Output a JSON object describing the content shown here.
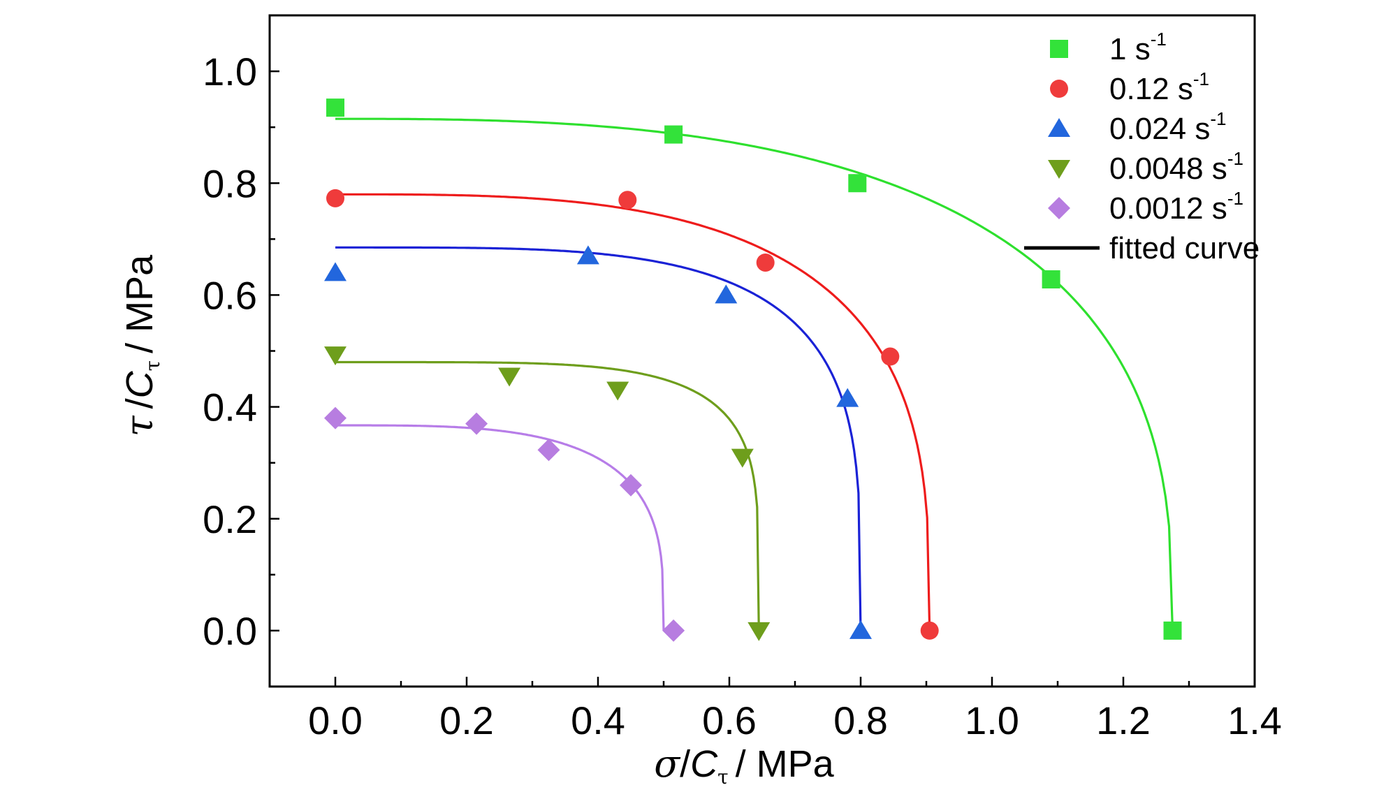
{
  "chart_data": {
    "type": "scatter",
    "title": "",
    "xlabel": {
      "symbol": "σ",
      "divisor": "C",
      "divisor_sub": "τ",
      "unit": "/ MPa"
    },
    "ylabel": {
      "symbol": "τ",
      "divisor": "C",
      "divisor_sub": "τ",
      "unit": "/ MPa"
    },
    "xlim": [
      -0.1,
      1.4
    ],
    "ylim": [
      -0.1,
      1.1
    ],
    "x_ticks": [
      "0.0",
      "0.2",
      "0.4",
      "0.6",
      "0.8",
      "1.0",
      "1.2",
      "1.4"
    ],
    "y_ticks": [
      "0.0",
      "0.2",
      "0.4",
      "0.6",
      "0.8",
      "1.0"
    ],
    "grid": false,
    "legend_position": "top-right",
    "legend_fit_label": "fitted curve",
    "series": [
      {
        "name": "1 s",
        "sup": "-1",
        "marker": "square",
        "color": "#33e23a",
        "points": [
          [
            0.0,
            0.935
          ],
          [
            0.515,
            0.887
          ],
          [
            0.795,
            0.8
          ],
          [
            1.09,
            0.628
          ],
          [
            1.275,
            0.0
          ]
        ],
        "fit": {
          "a": 1.275,
          "b": 0.915,
          "n": 2.8
        }
      },
      {
        "name": "0.12 s",
        "sup": "-1",
        "marker": "circle",
        "color": "#ef3b3b",
        "points": [
          [
            0.0,
            0.773
          ],
          [
            0.445,
            0.77
          ],
          [
            0.655,
            0.658
          ],
          [
            0.845,
            0.49
          ],
          [
            0.905,
            0.0
          ]
        ],
        "fit": {
          "a": 0.905,
          "b": 0.78,
          "n": 3.2
        }
      },
      {
        "name": "0.024 s",
        "sup": "-1",
        "marker": "triangle-up",
        "color": "#2266dd",
        "points": [
          [
            0.0,
            0.64
          ],
          [
            0.385,
            0.67
          ],
          [
            0.595,
            0.6
          ],
          [
            0.78,
            0.415
          ],
          [
            0.8,
            0.0
          ]
        ],
        "fit": {
          "a": 0.8,
          "b": 0.685,
          "n": 4.0
        }
      },
      {
        "name": "0.0048 s",
        "sup": "-1",
        "marker": "triangle-down",
        "color": "#6e9e1c",
        "points": [
          [
            0.0,
            0.493
          ],
          [
            0.265,
            0.455
          ],
          [
            0.43,
            0.43
          ],
          [
            0.62,
            0.31
          ],
          [
            0.645,
            0.0
          ]
        ],
        "fit": {
          "a": 0.645,
          "b": 0.48,
          "n": 5.0
        }
      },
      {
        "name": "0.0012 s",
        "sup": "-1",
        "marker": "diamond",
        "color": "#b77de0",
        "points": [
          [
            0.0,
            0.38
          ],
          [
            0.215,
            0.37
          ],
          [
            0.325,
            0.323
          ],
          [
            0.45,
            0.26
          ],
          [
            0.515,
            0.0
          ]
        ],
        "fit": {
          "a": 0.5,
          "b": 0.367,
          "n": 3.5
        }
      }
    ],
    "fit_colors": [
      "#2ee02e",
      "#ee1c1c",
      "#1a22d6",
      "#6e9e1c",
      "#b77de8"
    ]
  }
}
